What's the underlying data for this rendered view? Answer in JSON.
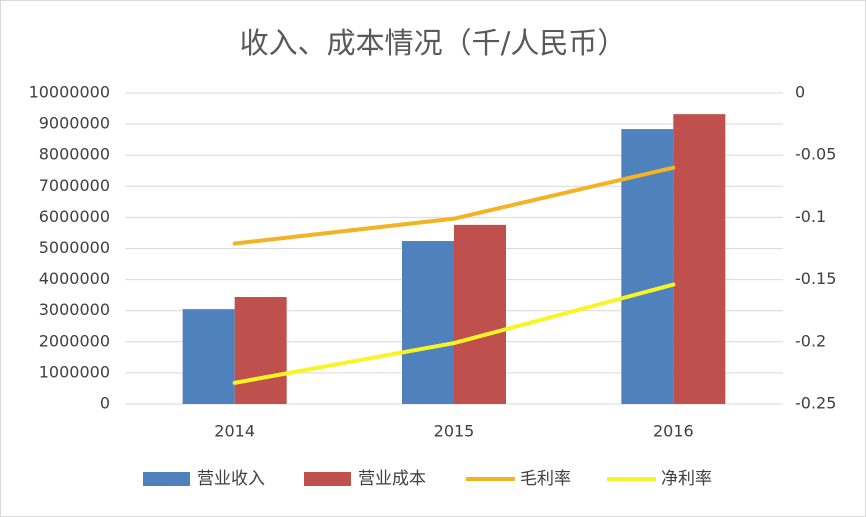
{
  "chart_data": {
    "type": "bar",
    "title": "收入、成本情况（千/人民币）",
    "categories": [
      "2014",
      "2015",
      "2016"
    ],
    "series": [
      {
        "name": "营业收入",
        "type": "bar",
        "color": "#4f81bd",
        "values": [
          3050000,
          5240000,
          8840000
        ]
      },
      {
        "name": "营业成本",
        "type": "bar",
        "color": "#c0504d",
        "values": [
          3440000,
          5760000,
          9320000
        ]
      },
      {
        "name": "毛利率",
        "type": "line",
        "axis": "y2",
        "color": "#f2b325",
        "values": [
          -0.121,
          -0.101,
          -0.06
        ]
      },
      {
        "name": "净利率",
        "type": "line",
        "axis": "y2",
        "color": "#f7f525",
        "values": [
          -0.233,
          -0.201,
          -0.154
        ]
      }
    ],
    "ylim": [
      0,
      10000000
    ],
    "yticks": [
      0,
      1000000,
      2000000,
      3000000,
      4000000,
      5000000,
      6000000,
      7000000,
      8000000,
      9000000,
      10000000
    ],
    "y2lim": [
      -0.25,
      0
    ],
    "y2ticks": [
      0,
      -0.05,
      -0.1,
      -0.15,
      -0.2,
      -0.25
    ],
    "grid": true,
    "legend": "bottom"
  }
}
